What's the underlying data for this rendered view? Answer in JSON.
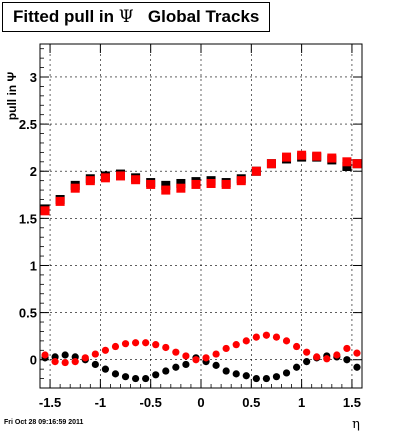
{
  "title": {
    "prefix": "Fitted pull in",
    "symbol": "Ψ",
    "suffix": "Global Tracks"
  },
  "timestamp": "Fri Oct 28 09:16:59 2011",
  "colors": {
    "series_a": "#000000",
    "series_b": "#ff0000",
    "grid": "#000000",
    "background": "#ffffff"
  },
  "chart_data": {
    "type": "scatter",
    "title": "Fitted pull in Ψ   Global Tracks",
    "xlabel": "η",
    "ylabel": "pull in Ψ",
    "xlim": [
      -1.6,
      1.6
    ],
    "ylim": [
      -0.3,
      3.35
    ],
    "xticks": [
      -1.5,
      -1,
      -0.5,
      0,
      0.5,
      1,
      1.5
    ],
    "xtick_labels": [
      "-1.5",
      "-1",
      "-0.5",
      "0",
      "0.5",
      "1",
      "1.5"
    ],
    "yticks": [
      0,
      0.5,
      1,
      1.5,
      2,
      2.5,
      3
    ],
    "ytick_labels": [
      "0",
      "0.5",
      "1",
      "1.5",
      "2",
      "2.5",
      "3"
    ],
    "grid": true,
    "legend": "none",
    "series": [
      {
        "color": "#000000",
        "marker": "square",
        "x": [
          -1.55,
          -1.4,
          -1.25,
          -1.1,
          -0.95,
          -0.8,
          -0.65,
          -0.5,
          -0.35,
          -0.2,
          -0.05,
          0.1,
          0.25,
          0.4,
          0.55,
          0.7,
          0.85,
          1.0,
          1.15,
          1.3,
          1.45,
          1.55
        ],
        "y": [
          1.6,
          1.7,
          1.85,
          1.92,
          1.95,
          1.97,
          1.93,
          1.88,
          1.85,
          1.87,
          1.89,
          1.9,
          1.88,
          1.92,
          2.0,
          2.08,
          2.13,
          2.15,
          2.15,
          2.12,
          2.05,
          2.08
        ]
      },
      {
        "color": "#ff0000",
        "marker": "square",
        "x": [
          -1.55,
          -1.4,
          -1.25,
          -1.1,
          -0.95,
          -0.8,
          -0.65,
          -0.5,
          -0.35,
          -0.2,
          -0.05,
          0.1,
          0.25,
          0.4,
          0.55,
          0.7,
          0.85,
          1.0,
          1.15,
          1.3,
          1.45,
          1.55
        ],
        "y": [
          1.58,
          1.68,
          1.82,
          1.9,
          1.93,
          1.95,
          1.91,
          1.86,
          1.8,
          1.82,
          1.86,
          1.87,
          1.86,
          1.9,
          2.0,
          2.08,
          2.15,
          2.17,
          2.16,
          2.14,
          2.1,
          2.08
        ]
      },
      {
        "color": "#000000",
        "marker": "circle",
        "x": [
          -1.55,
          -1.45,
          -1.35,
          -1.25,
          -1.15,
          -1.05,
          -0.95,
          -0.85,
          -0.75,
          -0.65,
          -0.55,
          -0.45,
          -0.35,
          -0.25,
          -0.15,
          -0.05,
          0.05,
          0.15,
          0.25,
          0.35,
          0.45,
          0.55,
          0.65,
          0.75,
          0.85,
          0.95,
          1.05,
          1.15,
          1.25,
          1.35,
          1.45,
          1.55
        ],
        "y": [
          0.02,
          0.03,
          0.05,
          0.03,
          0.0,
          -0.05,
          -0.1,
          -0.15,
          -0.18,
          -0.2,
          -0.2,
          -0.16,
          -0.12,
          -0.08,
          -0.05,
          0.02,
          -0.02,
          -0.06,
          -0.12,
          -0.15,
          -0.17,
          -0.2,
          -0.2,
          -0.18,
          -0.14,
          -0.08,
          -0.02,
          0.02,
          0.04,
          0.03,
          0.0,
          -0.08
        ]
      },
      {
        "color": "#ff0000",
        "marker": "circle",
        "x": [
          -1.55,
          -1.45,
          -1.35,
          -1.25,
          -1.15,
          -1.05,
          -0.95,
          -0.85,
          -0.75,
          -0.65,
          -0.55,
          -0.45,
          -0.35,
          -0.25,
          -0.15,
          -0.05,
          0.05,
          0.15,
          0.25,
          0.35,
          0.45,
          0.55,
          0.65,
          0.75,
          0.85,
          0.95,
          1.05,
          1.15,
          1.25,
          1.35,
          1.45,
          1.55
        ],
        "y": [
          0.05,
          -0.02,
          -0.03,
          -0.02,
          0.02,
          0.06,
          0.1,
          0.14,
          0.17,
          0.18,
          0.18,
          0.16,
          0.13,
          0.08,
          0.04,
          0.0,
          0.02,
          0.06,
          0.12,
          0.16,
          0.2,
          0.24,
          0.26,
          0.24,
          0.2,
          0.14,
          0.08,
          0.03,
          0.01,
          0.05,
          0.12,
          0.07
        ]
      }
    ]
  }
}
